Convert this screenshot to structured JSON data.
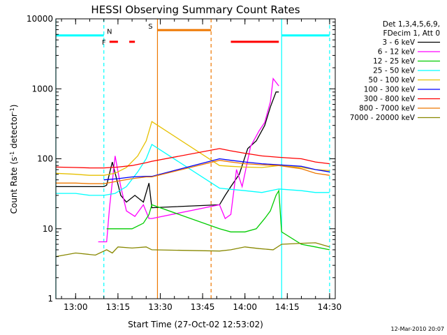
{
  "chart_data": {
    "type": "line",
    "title": "HESSI Observing Summary Count Rates",
    "xlabel": "Start Time (27-Oct-02 12:53:02)",
    "ylabel": "Count Rate (s-1 detector-1)",
    "y_scale": "log",
    "xlim": [
      "12:53",
      "14:32"
    ],
    "ylim": [
      1,
      10000
    ],
    "x_ticks": [
      "13:00",
      "13:15",
      "13:30",
      "13:45",
      "14:00",
      "14:15",
      "14:30"
    ],
    "y_ticks": [
      "1",
      "10",
      "100",
      "1000",
      "10000"
    ],
    "grid": false,
    "legend_position": "right",
    "legend_header": [
      "Det 1,3,4,5,6,9,",
      "FDecim 1, Att 0"
    ],
    "series": [
      {
        "name": "3 - 6 keV",
        "color": "#000000",
        "x": [
          "12:53",
          "13:05",
          "13:10",
          "13:11",
          "13:13",
          "13:16",
          "13:18",
          "13:21",
          "13:24",
          "13:26",
          "13:27",
          "13:51",
          "13:53",
          "13:55",
          "13:58",
          "14:01",
          "14:04",
          "14:07",
          "14:09",
          "14:11",
          "14:12"
        ],
        "y": [
          40,
          40,
          40,
          42,
          90,
          30,
          24,
          30,
          24,
          45,
          20,
          22,
          30,
          40,
          60,
          140,
          180,
          300,
          550,
          900,
          900
        ]
      },
      {
        "name": "6 - 12 keV",
        "color": "#ff00ff",
        "x": [
          "13:08",
          "13:11",
          "13:12",
          "13:14",
          "13:16",
          "13:18",
          "13:21",
          "13:24",
          "13:26",
          "13:27",
          "13:51",
          "13:53",
          "13:55",
          "13:57",
          "13:59",
          "14:02",
          "14:05",
          "14:07",
          "14:09",
          "14:10",
          "14:12"
        ],
        "y": [
          6.5,
          6.5,
          20,
          110,
          40,
          18,
          15,
          22,
          14,
          14,
          22,
          14,
          16,
          70,
          40,
          150,
          250,
          330,
          650,
          1400,
          1100
        ]
      },
      {
        "name": "12 - 25 keV",
        "color": "#00cc00",
        "x": [
          "13:11",
          "13:14",
          "13:20",
          "13:24",
          "13:26",
          "13:27",
          "13:51",
          "13:55",
          "14:00",
          "14:04",
          "14:07",
          "14:09",
          "14:11",
          "14:12",
          "14:13",
          "14:20",
          "14:25",
          "14:30"
        ],
        "y": [
          10,
          10,
          10,
          12,
          16,
          22,
          10,
          9,
          9,
          10,
          14,
          18,
          30,
          35,
          9,
          6,
          5.5,
          5
        ]
      },
      {
        "name": "25 - 50 keV",
        "color": "#00ffff",
        "x": [
          "12:53",
          "13:00",
          "13:05",
          "13:10",
          "13:14",
          "13:18",
          "13:22",
          "13:25",
          "13:27",
          "13:51",
          "14:00",
          "14:06",
          "14:12",
          "14:20",
          "14:25",
          "14:30"
        ],
        "y": [
          32,
          32,
          30,
          30,
          32,
          40,
          65,
          100,
          160,
          38,
          35,
          33,
          37,
          35,
          33,
          33
        ]
      },
      {
        "name": "50 - 100 keV",
        "color": "#e6c000",
        "x": [
          "12:53",
          "13:00",
          "13:05",
          "13:10",
          "13:14",
          "13:18",
          "13:22",
          "13:25",
          "13:27",
          "13:51",
          "13:55",
          "14:00",
          "14:06",
          "14:12",
          "14:20",
          "14:25",
          "14:30"
        ],
        "y": [
          62,
          60,
          58,
          58,
          62,
          75,
          110,
          180,
          340,
          80,
          78,
          76,
          75,
          80,
          75,
          70,
          68
        ]
      },
      {
        "name": "100 - 300 keV",
        "color": "#0000ff",
        "x": [
          "13:10",
          "13:15",
          "13:20",
          "13:25",
          "13:27",
          "13:51",
          "13:55",
          "14:00",
          "14:06",
          "14:12",
          "14:20",
          "14:25",
          "14:30"
        ],
        "y": [
          50,
          52,
          55,
          56,
          56,
          100,
          95,
          90,
          85,
          82,
          78,
          70,
          65
        ]
      },
      {
        "name": "300 - 800 keV",
        "color": "#ff0000",
        "x": [
          "12:53",
          "13:00",
          "13:05",
          "13:10",
          "13:15",
          "13:20",
          "13:25",
          "13:27",
          "13:51",
          "13:55",
          "14:00",
          "14:06",
          "14:12",
          "14:20",
          "14:25",
          "14:30"
        ],
        "y": [
          76,
          75,
          74,
          74,
          76,
          80,
          88,
          92,
          140,
          130,
          120,
          110,
          105,
          100,
          90,
          85
        ]
      },
      {
        "name": "800 - 7000 keV",
        "color": "#ee7700",
        "x": [
          "12:53",
          "13:00",
          "13:05",
          "13:10",
          "13:15",
          "13:20",
          "13:25",
          "13:27",
          "13:51",
          "13:55",
          "14:00",
          "14:06",
          "14:12",
          "14:20",
          "14:25",
          "14:30"
        ],
        "y": [
          45,
          45,
          44,
          44,
          48,
          52,
          55,
          55,
          95,
          90,
          85,
          82,
          80,
          72,
          62,
          58
        ]
      },
      {
        "name": "7000 - 20000 keV",
        "color": "#888800",
        "x": [
          "12:53",
          "13:00",
          "13:07",
          "13:11",
          "13:13",
          "13:15",
          "13:20",
          "13:25",
          "13:27",
          "13:51",
          "13:55",
          "14:00",
          "14:05",
          "14:10",
          "14:13",
          "14:20",
          "14:25",
          "14:30"
        ],
        "y": [
          4,
          4.5,
          4.2,
          5,
          4.5,
          5.5,
          5.3,
          5.5,
          5,
          4.8,
          5,
          5.5,
          5.2,
          5,
          6,
          6.2,
          6.3,
          5.5
        ]
      }
    ],
    "flags": [
      {
        "label": "N",
        "color": "#00ffff",
        "segments": [
          [
            "12:53",
            "13:10"
          ],
          [
            "14:13",
            "14:30"
          ]
        ],
        "y": 5800
      },
      {
        "label": "F",
        "color": "#ff0000",
        "segments": [
          [
            "13:12",
            "13:15"
          ],
          [
            "13:19",
            "13:21"
          ],
          [
            "13:55",
            "14:12"
          ]
        ],
        "y": 4700
      },
      {
        "label": "S",
        "color": "#ee7700",
        "segments": [
          [
            "13:29",
            "13:48"
          ]
        ],
        "y": 6900
      }
    ],
    "vertical_markers": [
      {
        "x": "12:53",
        "color": "#00ffff",
        "style": "solid"
      },
      {
        "x": "13:10",
        "color": "#00ffff",
        "style": "dashed"
      },
      {
        "x": "13:29",
        "color": "#ee7700",
        "style": "solid"
      },
      {
        "x": "13:48",
        "color": "#ee7700",
        "style": "dashed"
      },
      {
        "x": "14:13",
        "color": "#00ffff",
        "style": "solid"
      },
      {
        "x": "14:30",
        "color": "#00ffff",
        "style": "dashed"
      }
    ]
  },
  "footer_date": "12-Mar-2010 20:07"
}
